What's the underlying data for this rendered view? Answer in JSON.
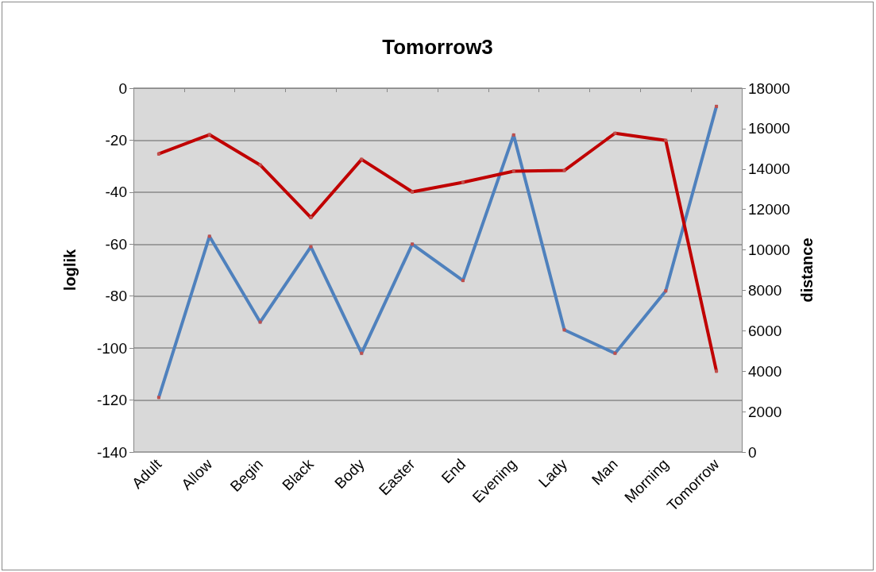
{
  "chart_data": {
    "type": "line",
    "title": "Tomorrow3",
    "ylabel": "loglik",
    "y2label": "distance",
    "categories": [
      "Adult",
      "Allow",
      "Begin",
      "Black",
      "Body",
      "Easter",
      "End",
      "Evening",
      "Lady",
      "Man",
      "Morning",
      "Tomorrow"
    ],
    "series": [
      {
        "color": "#4f81bd",
        "values": [
          -119,
          -57,
          -90,
          -61,
          -102,
          -60,
          -74,
          -18,
          -93,
          -102,
          -78,
          -7
        ]
      },
      {
        "color": "#c00000",
        "axis": "y2",
        "values": [
          14750,
          15700,
          14200,
          11600,
          14480,
          12870,
          13340,
          13890,
          13930,
          15770,
          15420,
          4000
        ]
      }
    ],
    "ylim": [
      -140,
      0
    ],
    "yticks": [
      -140,
      -120,
      -100,
      -80,
      -60,
      -40,
      -20,
      0
    ],
    "y2lim": [
      0,
      18000
    ],
    "y2ticks": [
      0,
      2000,
      4000,
      6000,
      8000,
      10000,
      12000,
      14000,
      16000,
      18000
    ],
    "grid": "y",
    "marker": "square",
    "line_style": "solid"
  }
}
